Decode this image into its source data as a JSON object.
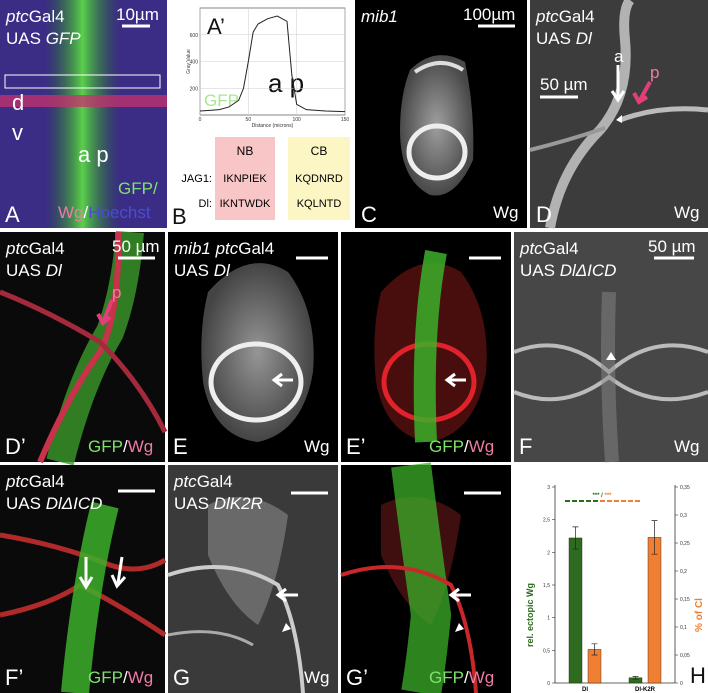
{
  "panels": {
    "A": {
      "letter": "A",
      "genotype": [
        "ptc",
        "Gal4"
      ],
      "construct": [
        "UAS ",
        "GFP"
      ],
      "scale": "10µm",
      "dorsal": "d",
      "ventral": "v",
      "ap": "a p",
      "stain": [
        "GFP/",
        "Wg",
        "/",
        "Hoechst"
      ]
    },
    "A2": {
      "letter": "A’",
      "ap": "a p",
      "channel": "GFP"
    },
    "B": {
      "letter": "B",
      "headers": [
        "NB",
        "CB"
      ],
      "rows": [
        {
          "label": "JAG1:",
          "nb": "IKNPIEK",
          "cb": "KQDNRD"
        },
        {
          "label": "Dl:",
          "nb": "IKNTWDK",
          "cb": "KQLNTD"
        }
      ]
    },
    "C": {
      "letter": "C",
      "genotype": "mib1",
      "scale": "100µm",
      "stain": "Wg"
    },
    "D": {
      "letter": "D",
      "genotype": [
        "ptc",
        "Gal4"
      ],
      "construct": [
        "UAS ",
        "Dl"
      ],
      "scale": "50 µm",
      "a": "a",
      "p": "p",
      "stain": "Wg"
    },
    "D2": {
      "letter": "D’",
      "genotype": [
        "ptc",
        "Gal4"
      ],
      "construct": [
        "UAS ",
        "Dl"
      ],
      "scale": "50 µm",
      "p": "p",
      "stain": [
        "GFP",
        "/",
        "Wg"
      ]
    },
    "E": {
      "letter": "E",
      "genotype": [
        "mib1 ptc",
        "Gal4"
      ],
      "construct": [
        "UAS ",
        "Dl"
      ],
      "stain": "Wg"
    },
    "E2": {
      "letter": "E’",
      "stain": [
        "GFP",
        "/",
        "Wg"
      ]
    },
    "F": {
      "letter": "F",
      "genotype": [
        "ptc",
        "Gal4"
      ],
      "construct": [
        "UAS ",
        "DlΔICD"
      ],
      "scale": "50 µm",
      "stain": "Wg"
    },
    "F2": {
      "letter": "F’",
      "genotype": [
        "ptc",
        "Gal4"
      ],
      "construct": [
        "UAS ",
        "DlΔICD"
      ],
      "stain": [
        "GFP",
        "/",
        "Wg"
      ]
    },
    "G": {
      "letter": "G",
      "genotype": [
        "ptc",
        "Gal4"
      ],
      "construct": [
        "UAS ",
        "DlK2R"
      ],
      "stain": "Wg"
    },
    "G2": {
      "letter": "G’",
      "stain": [
        "GFP",
        "/",
        "Wg"
      ]
    },
    "H": {
      "letter": "H"
    }
  },
  "chart_data": [
    {
      "type": "line",
      "x_label": "Distance (microns)",
      "y_label": "Gray Value",
      "x": [
        0,
        10,
        20,
        30,
        40,
        45,
        50,
        55,
        60,
        70,
        80,
        90,
        95,
        100,
        110,
        130,
        150
      ],
      "series": [
        {
          "name": "GFP",
          "color": "#222222",
          "values": [
            30,
            35,
            40,
            60,
            110,
            200,
            400,
            620,
            680,
            720,
            740,
            700,
            300,
            80,
            40,
            30,
            25
          ]
        }
      ],
      "xlim": [
        0,
        150
      ],
      "xticks": [
        0,
        50,
        100,
        150
      ],
      "ylim": [
        0,
        800
      ],
      "yticks": [
        200,
        400,
        600
      ],
      "grid": true
    },
    {
      "type": "bar",
      "y_label": "rel. ectopic Wg",
      "y2_label": "% of Cl",
      "annotation": [
        "***",
        " / ",
        "***"
      ],
      "categories": [
        "Dl",
        "Dl-K2R"
      ],
      "series": [
        {
          "name": "rel. ectopic Wg",
          "color": "#2e6b1f",
          "values": [
            2.22,
            0.08
          ],
          "errors": [
            0.17,
            0.02
          ]
        },
        {
          "name": "% of Cl",
          "color": "#f07f33",
          "axis": "y2",
          "values": [
            0.06,
            0.26
          ],
          "errors": [
            0.01,
            0.03
          ]
        }
      ],
      "ylim": [
        0,
        3
      ],
      "yticks": [
        0,
        {
          "value": 0.5,
          "label": "0,5"
        },
        1,
        {
          "value": 1.5,
          "label": "1,5"
        },
        2,
        {
          "value": 2.5,
          "label": "2,5"
        },
        3
      ],
      "y2lim": [
        0,
        0.35
      ],
      "y2ticks": [
        0,
        {
          "value": 0.05,
          "label": "0,05"
        },
        {
          "value": 0.1,
          "label": "0,1"
        },
        {
          "value": 0.15,
          "label": "0,15"
        },
        {
          "value": 0.2,
          "label": "0,2"
        },
        {
          "value": 0.25,
          "label": "0,25"
        },
        {
          "value": 0.3,
          "label": "0,3"
        },
        {
          "value": 0.35,
          "label": "0,35"
        }
      ]
    }
  ]
}
